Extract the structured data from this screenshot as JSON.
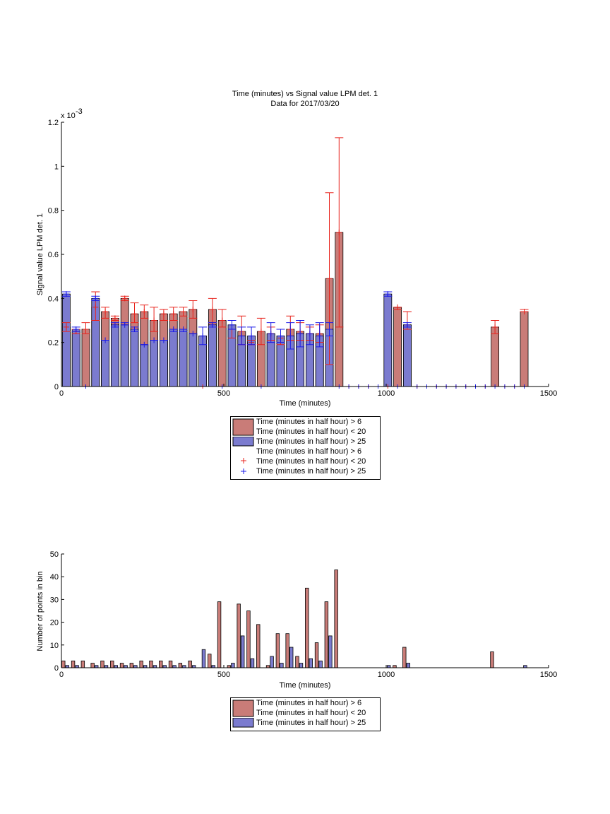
{
  "colors": {
    "red_bar": "#c97c78",
    "blue_bar": "#7b7bcf",
    "red_err": "#e8231c",
    "blue_err": "#1a1ae8"
  },
  "top": {
    "title_line1": "Time (minutes) vs Signal value LPM det. 1",
    "title_line2": "Data for 2017/03/20",
    "xlabel": "Time (minutes)",
    "ylabel": "Signal value LPM det. 1",
    "exponent_base": "x 10",
    "exponent_power": "-3",
    "x_ticks": [
      "0",
      "500",
      "1000",
      "1500"
    ],
    "y_ticks": [
      "0",
      "0.2",
      "0.4",
      "0.6",
      "0.8",
      "1",
      "1.2"
    ]
  },
  "bottom": {
    "xlabel": "Time (minutes)",
    "ylabel": "Number of points in bin",
    "x_ticks": [
      "0",
      "500",
      "1000",
      "1500"
    ],
    "y_ticks": [
      "0",
      "10",
      "20",
      "30",
      "40",
      "50"
    ]
  },
  "legend_top": [
    "Time (minutes in half hour) > 6",
    "Time (minutes in half hour) < 20",
    "Time (minutes in half hour) > 25",
    "Time (minutes in half hour) > 6",
    "Time (minutes in half hour) < 20",
    "Time (minutes in half hour) > 25"
  ],
  "legend_bottom": [
    "Time (minutes in half hour) > 6",
    "Time (minutes in half hour) < 20",
    "Time (minutes in half hour) > 25"
  ],
  "chart_data": [
    {
      "type": "bar",
      "title": "Time (minutes) vs Signal value LPM det. 1 / Data for 2017/03/20",
      "xlabel": "Time (minutes)",
      "ylabel": "Signal value LPM det. 1",
      "y_multiplier": "x 10^-3",
      "xlim": [
        0,
        1500
      ],
      "ylim": [
        0,
        1.2
      ],
      "series": [
        {
          "name": "Time (minutes in half hour) > 6 / Time (minutes in half hour) < 20",
          "bar_width": 24,
          "x": [
            15,
            45,
            75,
            105,
            135,
            165,
            195,
            225,
            255,
            285,
            315,
            345,
            375,
            405,
            435,
            465,
            495,
            525,
            555,
            585,
            615,
            645,
            675,
            705,
            735,
            765,
            795,
            825,
            855,
            885,
            915,
            945,
            975,
            1005,
            1035,
            1065,
            1095,
            1125,
            1155,
            1185,
            1215,
            1245,
            1275,
            1305,
            1335,
            1365,
            1395,
            1425
          ],
          "values": [
            0.27,
            0.25,
            0.26,
            0.36,
            0.34,
            0.31,
            0.4,
            0.33,
            0.34,
            0.3,
            0.33,
            0.33,
            0.34,
            0.35,
            0,
            0.35,
            0.3,
            0.26,
            0.25,
            0.2,
            0.25,
            0.24,
            0.22,
            0.26,
            0.25,
            0.24,
            0.24,
            0.49,
            0.7,
            0,
            0,
            0,
            0,
            0,
            0.36,
            0.28,
            0,
            0,
            0,
            0,
            0,
            0,
            0,
            0,
            0.27,
            0,
            0,
            0.34
          ],
          "error_low": [
            0.25,
            0.24,
            0.24,
            0.3,
            0.31,
            0.3,
            0.39,
            0.29,
            0.31,
            0.25,
            0.3,
            0.3,
            0.32,
            0.31,
            0,
            0.29,
            0.27,
            0.22,
            0.19,
            0.19,
            0.19,
            0.21,
            0.19,
            0.21,
            0.21,
            0.21,
            0.2,
            0.1,
            0.27,
            0,
            0,
            0,
            0,
            0,
            0.35,
            0.26,
            0,
            0,
            0,
            0,
            0,
            0,
            0,
            0,
            0.24,
            0,
            0,
            0.34
          ],
          "error_high": [
            0.29,
            0.26,
            0.29,
            0.43,
            0.36,
            0.32,
            0.41,
            0.38,
            0.37,
            0.36,
            0.35,
            0.36,
            0.36,
            0.39,
            0,
            0.4,
            0.35,
            0.3,
            0.32,
            0.21,
            0.31,
            0.27,
            0.26,
            0.32,
            0.29,
            0.27,
            0.28,
            0.88,
            1.13,
            0,
            0,
            0,
            0,
            0,
            0.36,
            0.34,
            0,
            0,
            0,
            0,
            0,
            0,
            0,
            0,
            0.3,
            0,
            0,
            0.35
          ]
        },
        {
          "name": "Time (minutes in half hour) > 25",
          "bar_width": 24,
          "x": [
            15,
            45,
            75,
            105,
            135,
            165,
            195,
            225,
            255,
            285,
            315,
            345,
            375,
            405,
            435,
            465,
            495,
            525,
            555,
            585,
            615,
            645,
            675,
            705,
            735,
            765,
            795,
            825,
            855,
            885,
            915,
            945,
            975,
            1005,
            1035,
            1065,
            1095,
            1125,
            1155,
            1185,
            1215,
            1245,
            1275,
            1305,
            1335,
            1365,
            1395,
            1425
          ],
          "values": [
            0.42,
            0.26,
            0,
            0.4,
            0.21,
            0.28,
            0.28,
            0.26,
            0.19,
            0.21,
            0.21,
            0.26,
            0.26,
            0.24,
            0.23,
            0.28,
            0,
            0.28,
            0.23,
            0.23,
            0,
            0.24,
            0.23,
            0.23,
            0.24,
            0.24,
            0.23,
            0.26,
            0,
            0,
            0,
            0,
            0,
            0.42,
            0,
            0.28,
            0,
            0,
            0,
            0,
            0,
            0,
            0,
            0,
            0,
            0,
            0,
            0
          ],
          "error_low": [
            0.41,
            0.25,
            0,
            0.39,
            0.21,
            0.27,
            0.28,
            0.25,
            0.19,
            0.21,
            0.21,
            0.25,
            0.25,
            0.24,
            0.19,
            0.27,
            0,
            0.26,
            0.19,
            0.19,
            0,
            0.2,
            0.2,
            0.17,
            0.18,
            0.19,
            0.18,
            0.23,
            0,
            0,
            0,
            0,
            0,
            0.41,
            0,
            0.27,
            0,
            0,
            0,
            0,
            0,
            0,
            0,
            0,
            0,
            0,
            0,
            0
          ],
          "error_high": [
            0.43,
            0.27,
            0,
            0.41,
            0.21,
            0.29,
            0.29,
            0.27,
            0.19,
            0.21,
            0.21,
            0.26,
            0.26,
            0.24,
            0.27,
            0.29,
            0,
            0.3,
            0.27,
            0.27,
            0,
            0.29,
            0.26,
            0.29,
            0.3,
            0.28,
            0.29,
            0.29,
            0,
            0,
            0,
            0,
            0,
            0.43,
            0,
            0.29,
            0,
            0,
            0,
            0,
            0,
            0,
            0,
            0,
            0,
            0,
            0,
            0
          ]
        }
      ]
    },
    {
      "type": "bar",
      "title": "",
      "xlabel": "Time (minutes)",
      "ylabel": "Number of points in bin",
      "xlim": [
        0,
        1500
      ],
      "ylim": [
        0,
        50
      ],
      "series": [
        {
          "name": "Time (minutes in half hour) > 6 / Time (minutes in half hour) < 20",
          "bar_width": 10,
          "x": [
            6,
            36,
            66,
            96,
            126,
            156,
            186,
            216,
            246,
            276,
            306,
            336,
            366,
            396,
            426,
            456,
            486,
            516,
            546,
            576,
            606,
            636,
            666,
            696,
            726,
            756,
            786,
            816,
            846,
            876,
            906,
            936,
            966,
            996,
            1026,
            1056,
            1086,
            1116,
            1146,
            1176,
            1206,
            1236,
            1266,
            1296,
            1326,
            1356,
            1386,
            1416
          ],
          "values": [
            3,
            3,
            3,
            2,
            3,
            3,
            2,
            2,
            3,
            3,
            3,
            3,
            2,
            3,
            0,
            6,
            29,
            1,
            28,
            25,
            19,
            1,
            15,
            15,
            5,
            35,
            11,
            29,
            43,
            0,
            0,
            0,
            0,
            0,
            1,
            9,
            0,
            0,
            0,
            0,
            0,
            0,
            0,
            0,
            7,
            0,
            0,
            0
          ]
        },
        {
          "name": "Time (minutes in half hour) > 25",
          "bar_width": 10,
          "x": [
            18,
            48,
            78,
            108,
            138,
            168,
            198,
            228,
            258,
            288,
            318,
            348,
            378,
            408,
            438,
            468,
            498,
            528,
            558,
            588,
            618,
            648,
            678,
            708,
            738,
            768,
            798,
            828,
            858,
            888,
            918,
            948,
            978,
            1008,
            1038,
            1068,
            1098,
            1128,
            1158,
            1188,
            1218,
            1248,
            1278,
            1308,
            1338,
            1368,
            1398,
            1428
          ],
          "values": [
            1,
            1,
            0,
            1,
            1,
            1,
            1,
            1,
            1,
            1,
            1,
            1,
            1,
            1,
            8,
            1,
            0,
            2,
            14,
            4,
            0,
            5,
            2,
            9,
            2,
            4,
            3,
            14,
            0,
            0,
            0,
            0,
            0,
            1,
            0,
            2,
            0,
            0,
            0,
            0,
            0,
            0,
            0,
            0,
            0,
            0,
            0,
            1
          ]
        }
      ]
    }
  ]
}
